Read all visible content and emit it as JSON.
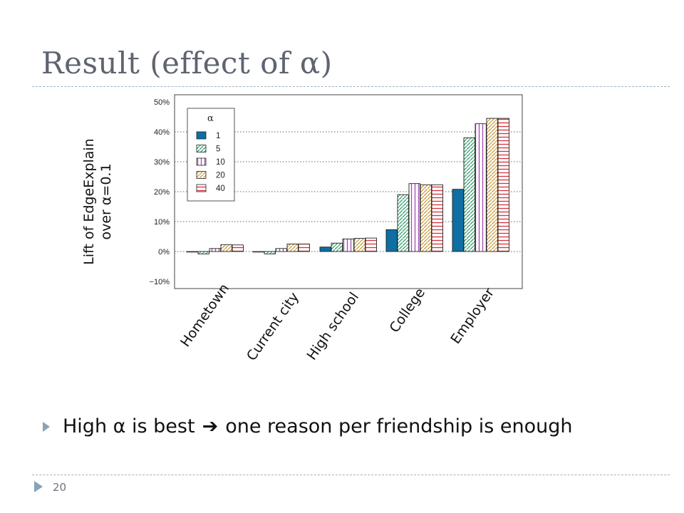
{
  "slide": {
    "title": "Result (effect of α)",
    "bullet": {
      "before": "High α is best",
      "arrow": "➔",
      "after": "one reason per friendship is enough"
    },
    "page_number": "20"
  },
  "chart_data": {
    "type": "bar",
    "title": "",
    "xlabel": "",
    "ylabel": "Lift of EdgeExplain over α=0.1",
    "ylabel_lines": [
      "Lift of EdgeExplain",
      "over α=0.1"
    ],
    "categories": [
      "Hometown",
      "Current city",
      "High school",
      "College",
      "Employer"
    ],
    "yticks": [
      "−10%",
      "0%",
      "10%",
      "20%",
      "30%",
      "40%",
      "50%"
    ],
    "ylim": [
      -10,
      50
    ],
    "grid": true,
    "legend_title": "α",
    "legend_position": "top-left",
    "series": [
      {
        "name": "1",
        "color": "#0f6fa3",
        "pattern": "solid",
        "values": [
          0.0,
          0.0,
          1.5,
          7.3,
          20.8
        ]
      },
      {
        "name": "5",
        "color": "#2e9e6a",
        "pattern": "diagonal",
        "values": [
          -0.8,
          -0.8,
          2.8,
          19.0,
          38.0
        ]
      },
      {
        "name": "10",
        "color": "#a14bb0",
        "pattern": "vertical",
        "values": [
          1.0,
          1.0,
          4.2,
          22.7,
          42.7
        ]
      },
      {
        "name": "20",
        "color": "#c99a3a",
        "pattern": "diagonal",
        "values": [
          2.3,
          2.5,
          4.4,
          22.3,
          44.5
        ]
      },
      {
        "name": "40",
        "color": "#d9323a",
        "pattern": "horizontal",
        "values": [
          2.2,
          2.5,
          4.5,
          22.3,
          44.5
        ]
      }
    ]
  }
}
